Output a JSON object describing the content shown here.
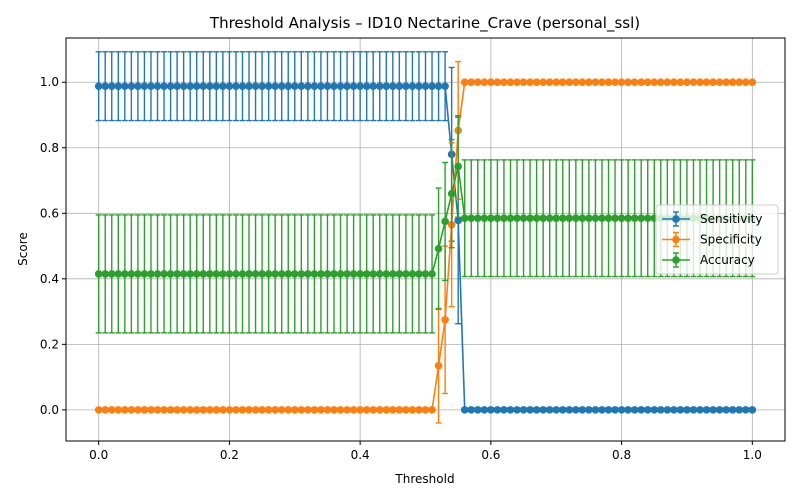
{
  "chart_data": {
    "type": "line",
    "title": "Threshold Analysis – ID10 Nectarine_Crave (personal_ssl)",
    "xlabel": "Threshold",
    "ylabel": "Score",
    "xlim": [
      -0.05,
      1.05
    ],
    "ylim": [
      -0.095,
      1.135
    ],
    "x_ticks": [
      "0.0",
      "0.2",
      "0.4",
      "0.6",
      "0.8",
      "1.0"
    ],
    "y_ticks": [
      "0.0",
      "0.2",
      "0.4",
      "0.6",
      "0.8",
      "1.0"
    ],
    "grid": true,
    "legend_position": "center right",
    "x_start": 0.0,
    "x_step": 0.01,
    "x_count": 101,
    "series": [
      {
        "name": "Sensitivity",
        "color": "#1f77b4",
        "segments": [
          {
            "from": 0.0,
            "to": 0.53,
            "value": 0.988,
            "err": 0.105
          },
          {
            "from": 0.54,
            "to": 0.54,
            "value": 0.78,
            "err": 0.265
          },
          {
            "from": 0.55,
            "to": 0.55,
            "value": 0.578,
            "err": 0.315
          },
          {
            "from": 0.56,
            "to": 1.0,
            "value": 0.0,
            "err": 0.0
          }
        ]
      },
      {
        "name": "Specificity",
        "color": "#ff7f0e",
        "segments": [
          {
            "from": 0.0,
            "to": 0.51,
            "value": 0.0,
            "err": 0.0
          },
          {
            "from": 0.52,
            "to": 0.52,
            "value": 0.135,
            "err": 0.175
          },
          {
            "from": 0.53,
            "to": 0.53,
            "value": 0.275,
            "err": 0.225
          },
          {
            "from": 0.54,
            "to": 0.54,
            "value": 0.565,
            "err": 0.25
          },
          {
            "from": 0.55,
            "to": 0.55,
            "value": 0.853,
            "err": 0.21
          },
          {
            "from": 0.56,
            "to": 1.0,
            "value": 1.0,
            "err": 0.0
          }
        ]
      },
      {
        "name": "Accuracy",
        "color": "#2ca02c",
        "segments": [
          {
            "from": 0.0,
            "to": 0.51,
            "value": 0.415,
            "err": 0.18
          },
          {
            "from": 0.52,
            "to": 0.52,
            "value": 0.492,
            "err": 0.185
          },
          {
            "from": 0.53,
            "to": 0.53,
            "value": 0.575,
            "err": 0.18
          },
          {
            "from": 0.54,
            "to": 0.54,
            "value": 0.66,
            "err": 0.165
          },
          {
            "from": 0.55,
            "to": 0.55,
            "value": 0.743,
            "err": 0.155
          },
          {
            "from": 0.56,
            "to": 1.0,
            "value": 0.585,
            "err": 0.178
          }
        ]
      }
    ]
  }
}
